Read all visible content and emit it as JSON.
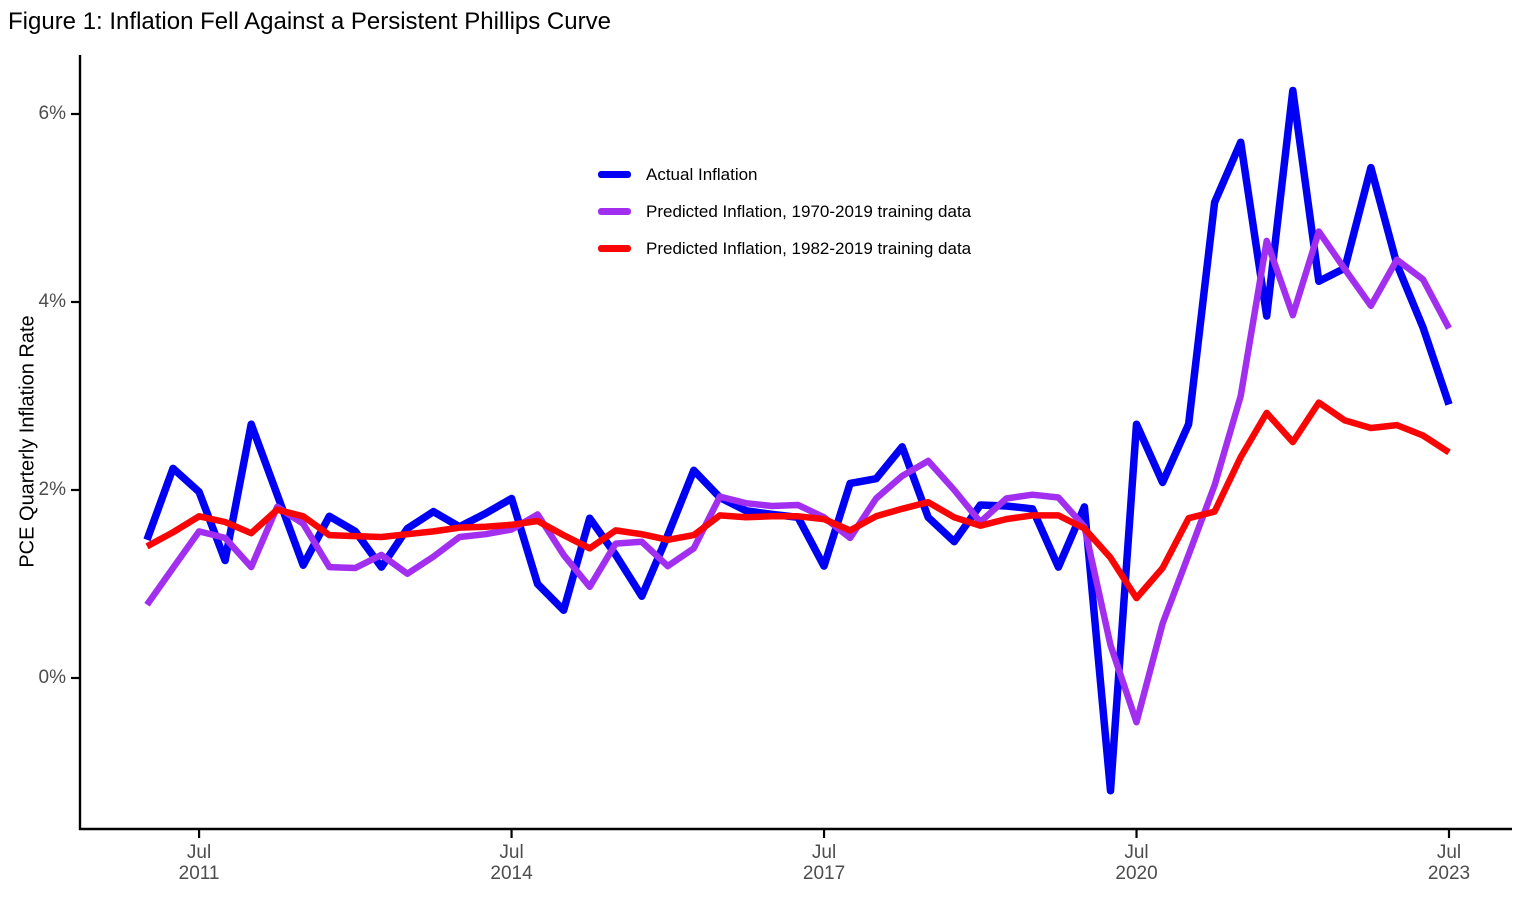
{
  "title": "Figure 1: Inflation Fell Against a Persistent Phillips Curve",
  "y_axis_label": "PCE Quarterly Inflation Rate",
  "chart_data": {
    "type": "line",
    "title": "Figure 1: Inflation Fell Against a Persistent Phillips Curve",
    "xlabel": "",
    "ylabel": "PCE Quarterly Inflation Rate",
    "grid": false,
    "legend_position": "inside-top-center",
    "x": [
      "2011 Q1",
      "2011 Q2",
      "2011 Q3",
      "2011 Q4",
      "2012 Q1",
      "2012 Q2",
      "2012 Q3",
      "2012 Q4",
      "2013 Q1",
      "2013 Q2",
      "2013 Q3",
      "2013 Q4",
      "2014 Q1",
      "2014 Q2",
      "2014 Q3",
      "2014 Q4",
      "2015 Q1",
      "2015 Q2",
      "2015 Q3",
      "2015 Q4",
      "2016 Q1",
      "2016 Q2",
      "2016 Q3",
      "2016 Q4",
      "2017 Q1",
      "2017 Q2",
      "2017 Q3",
      "2017 Q4",
      "2018 Q1",
      "2018 Q2",
      "2018 Q3",
      "2018 Q4",
      "2019 Q1",
      "2019 Q2",
      "2019 Q3",
      "2019 Q4",
      "2020 Q1",
      "2020 Q2",
      "2020 Q3",
      "2020 Q4",
      "2021 Q1",
      "2021 Q2",
      "2021 Q3",
      "2021 Q4",
      "2022 Q1",
      "2022 Q2",
      "2022 Q3",
      "2022 Q4",
      "2023 Q1",
      "2023 Q2",
      "2023 Q3"
    ],
    "series": [
      {
        "name": "Actual Inflation",
        "color": "#0000f5",
        "stroke_width": 7.5,
        "values": [
          1.47,
          2.23,
          1.98,
          1.25,
          2.7,
          1.95,
          1.2,
          1.72,
          1.56,
          1.18,
          1.59,
          1.77,
          1.61,
          1.75,
          1.91,
          1.0,
          0.72,
          1.7,
          1.31,
          0.87,
          1.52,
          2.21,
          1.92,
          1.78,
          1.74,
          1.71,
          1.19,
          2.07,
          2.12,
          2.46,
          1.71,
          1.45,
          1.84,
          1.83,
          1.8,
          1.18,
          1.82,
          -1.2,
          2.7,
          2.08,
          2.7,
          5.06,
          5.7,
          3.85,
          6.25,
          4.22,
          4.36,
          5.43,
          4.4,
          3.73,
          2.91
        ]
      },
      {
        "name": "Predicted Inflation, 1970-2019 training data",
        "color": "#a22ff0",
        "stroke_width": 6.5,
        "values": [
          0.78,
          1.17,
          1.56,
          1.49,
          1.18,
          1.82,
          1.64,
          1.18,
          1.17,
          1.31,
          1.11,
          1.29,
          1.5,
          1.53,
          1.58,
          1.74,
          1.31,
          0.97,
          1.43,
          1.45,
          1.19,
          1.38,
          1.93,
          1.86,
          1.83,
          1.84,
          1.71,
          1.49,
          1.91,
          2.15,
          2.31,
          2.0,
          1.66,
          1.91,
          1.95,
          1.92,
          1.61,
          0.35,
          -0.47,
          0.58,
          1.31,
          2.05,
          3.0,
          4.65,
          3.86,
          4.75,
          4.35,
          3.96,
          4.45,
          4.24,
          3.72
        ]
      },
      {
        "name": "Predicted Inflation, 1982-2019 training data",
        "color": "#fa0505",
        "stroke_width": 6.5,
        "values": [
          1.4,
          1.55,
          1.72,
          1.66,
          1.54,
          1.79,
          1.72,
          1.52,
          1.51,
          1.5,
          1.53,
          1.56,
          1.6,
          1.61,
          1.63,
          1.67,
          1.52,
          1.38,
          1.57,
          1.53,
          1.47,
          1.52,
          1.73,
          1.71,
          1.72,
          1.72,
          1.69,
          1.57,
          1.72,
          1.8,
          1.87,
          1.71,
          1.62,
          1.69,
          1.73,
          1.73,
          1.59,
          1.28,
          0.85,
          1.17,
          1.7,
          1.77,
          2.35,
          2.82,
          2.51,
          2.93,
          2.74,
          2.66,
          2.69,
          2.58,
          2.4
        ]
      }
    ],
    "x_axis": {
      "ticks": [
        {
          "index": 2,
          "label_month": "Jul",
          "label_year": "2011"
        },
        {
          "index": 14,
          "label_month": "Jul",
          "label_year": "2014"
        },
        {
          "index": 26,
          "label_month": "Jul",
          "label_year": "2017"
        },
        {
          "index": 38,
          "label_month": "Jul",
          "label_year": "2020"
        },
        {
          "index": 50,
          "label_month": "Jul",
          "label_year": "2023"
        }
      ]
    },
    "y_axis": {
      "ticks": [
        {
          "value": 0,
          "label": "0%"
        },
        {
          "value": 2,
          "label": "2%"
        },
        {
          "value": 4,
          "label": "4%"
        },
        {
          "value": 6,
          "label": "6%"
        }
      ],
      "range": [
        -1.65,
        6.6
      ]
    }
  },
  "colors": {
    "axis": "#000000",
    "tick_text": "#4d4d4d",
    "background": "#ffffff"
  }
}
